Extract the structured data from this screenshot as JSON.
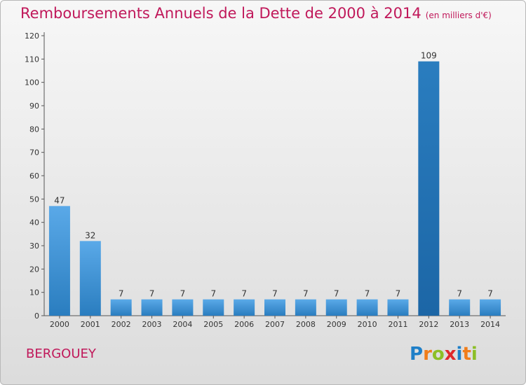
{
  "title": "Remboursements Annuels de la Dette de 2000 à 2014",
  "subtitle": "(en milliers d'€)",
  "commune": "BERGOUEY",
  "logo": {
    "text": "Proxiti",
    "letters": [
      "P",
      "r",
      "o",
      "x",
      "i",
      "t",
      "i"
    ],
    "colors": [
      "#1e7fc8",
      "#f07d1a",
      "#8cbf26",
      "#e0282b",
      "#1e7fc8",
      "#f07d1a",
      "#8cbf26"
    ]
  },
  "colors": {
    "title": "#c0185a",
    "bar_light": "#5aa9e8",
    "bar_dark": "#2a7dbf",
    "highlight_dark": "#1c66a6"
  },
  "chart_data": {
    "type": "bar",
    "categories": [
      "2000",
      "2001",
      "2002",
      "2003",
      "2004",
      "2005",
      "2006",
      "2007",
      "2008",
      "2009",
      "2010",
      "2011",
      "2012",
      "2013",
      "2014"
    ],
    "values": [
      47,
      32,
      7,
      7,
      7,
      7,
      7,
      7,
      7,
      7,
      7,
      7,
      109,
      7,
      7
    ],
    "ylim": [
      0,
      120
    ],
    "yticks": [
      0,
      10,
      20,
      30,
      40,
      50,
      60,
      70,
      80,
      90,
      100,
      110,
      120
    ],
    "grid": false
  }
}
